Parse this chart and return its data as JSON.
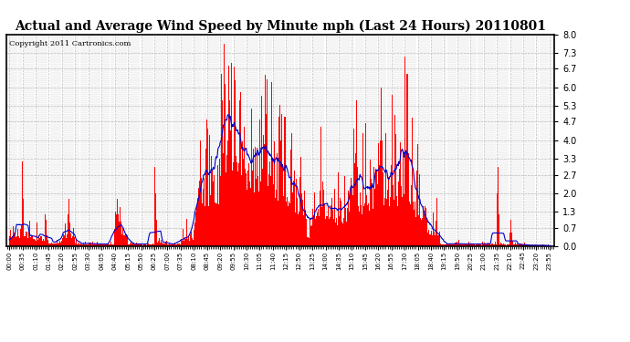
{
  "title": "Actual and Average Wind Speed by Minute mph (Last 24 Hours) 20110801",
  "copyright": "Copyright 2011 Cartronics.com",
  "yticks": [
    0.0,
    0.7,
    1.3,
    2.0,
    2.7,
    3.3,
    4.0,
    4.7,
    5.3,
    6.0,
    6.7,
    7.3,
    8.0
  ],
  "ylim": [
    0.0,
    8.0
  ],
  "bar_color": "#FF0000",
  "line_color": "#0000CC",
  "background_color": "#FFFFFF",
  "grid_color": "#BBBBBB",
  "title_fontsize": 10,
  "copyright_fontsize": 6,
  "xtick_labels": [
    "00:00",
    "00:35",
    "01:10",
    "01:45",
    "02:20",
    "02:55",
    "03:30",
    "04:05",
    "04:40",
    "05:15",
    "05:50",
    "06:25",
    "07:00",
    "07:35",
    "08:10",
    "08:45",
    "09:20",
    "09:55",
    "10:30",
    "11:05",
    "11:40",
    "12:15",
    "12:50",
    "13:25",
    "14:00",
    "14:35",
    "15:10",
    "15:45",
    "16:20",
    "16:55",
    "17:30",
    "18:05",
    "18:40",
    "19:15",
    "19:50",
    "20:25",
    "21:00",
    "21:35",
    "22:10",
    "22:45",
    "23:20",
    "23:55"
  ]
}
